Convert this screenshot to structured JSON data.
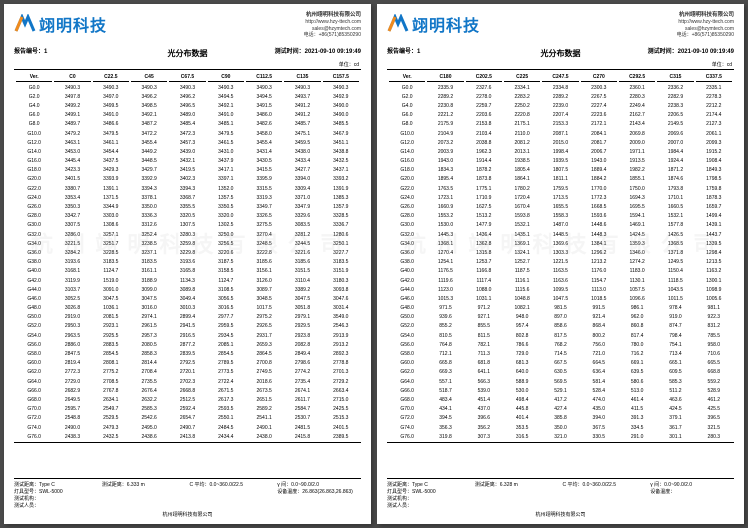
{
  "logo_text": "翊明科技",
  "company": {
    "name": "杭州翊明科技有限公司",
    "url": "http://www.hzy-ttech.com",
    "email": "sales@hzymtech.com",
    "tel": "电话：+86(571)85350290"
  },
  "watermark": "杭 州 翊 明 科 技 有 限 公 司",
  "pages": [
    {
      "report_no_label": "报告编号：",
      "report_no": "1",
      "test_time_label": "测试时间：",
      "test_time": "2021-09-10 09:19:49",
      "title": "光分布数据",
      "unit": "单位：cd",
      "columns": [
        "Ver.",
        "C0",
        "C22.5",
        "C45",
        "C67.5",
        "C90",
        "C112.5",
        "C135",
        "C157.5"
      ],
      "rows": [
        [
          "G0.0",
          "3490.3",
          "3490.3",
          "3490.3",
          "3490.3",
          "3490.3",
          "3490.3",
          "3490.3",
          "3490.3"
        ],
        [
          "G2.0",
          "3497.8",
          "3497.0",
          "3496.2",
          "3496.2",
          "3494.5",
          "3494.5",
          "3493.7",
          "3492.9"
        ],
        [
          "G4.0",
          "3499.2",
          "3499.5",
          "3498.5",
          "3496.5",
          "3492.1",
          "3491.5",
          "3491.2",
          "3490.0"
        ],
        [
          "G6.0",
          "3499.1",
          "3491.0",
          "3492.1",
          "3489.0",
          "3491.0",
          "3486.0",
          "3491.2",
          "3490.0"
        ],
        [
          "G8.0",
          "3489.7",
          "3486.6",
          "3487.2",
          "3485.4",
          "3485.1",
          "3482.6",
          "3485.7",
          "3485.5"
        ],
        [
          "G10.0",
          "3479.2",
          "3479.5",
          "3472.2",
          "3472.3",
          "3479.5",
          "3458.0",
          "3475.1",
          "3467.9"
        ],
        [
          "G12.0",
          "3463.1",
          "3461.1",
          "3455.4",
          "3457.3",
          "3461.5",
          "3455.4",
          "3459.5",
          "3451.1"
        ],
        [
          "G14.0",
          "3453.0",
          "3454.4",
          "3449.2",
          "3439.0",
          "3431.0",
          "3431.4",
          "3438.0",
          "3438.8"
        ],
        [
          "G16.0",
          "3445.4",
          "3437.5",
          "3448.5",
          "3432.1",
          "3437.9",
          "3430.5",
          "3433.4",
          "3432.5"
        ],
        [
          "G18.0",
          "3423.3",
          "3429.3",
          "3429.7",
          "3419.5",
          "3417.1",
          "3415.5",
          "3427.7",
          "3437.1"
        ],
        [
          "G20.0",
          "3401.5",
          "3393.9",
          "3392.9",
          "3402.3",
          "3397.1",
          "3395.9",
          "3394.0",
          "3393.2"
        ],
        [
          "G22.0",
          "3380.7",
          "1391.1",
          "3394.3",
          "3394.3",
          "1352.0",
          "3315.5",
          "3309.4",
          "1391.9"
        ],
        [
          "G24.0",
          "3353.4",
          "1371.5",
          "3378.1",
          "3368.7",
          "1357.5",
          "3319.3",
          "3371.0",
          "1385.3"
        ],
        [
          "G26.0",
          "3350.3",
          "3344.9",
          "3350.0",
          "3355.5",
          "3350.5",
          "3349.7",
          "3347.9",
          "1357.9"
        ],
        [
          "G28.0",
          "3342.7",
          "3303.0",
          "3336.3",
          "3320.5",
          "3320.0",
          "3326.5",
          "3329.6",
          "3328.5"
        ],
        [
          "G30.0",
          "3307.5",
          "1308.6",
          "3312.6",
          "1307.5",
          "1302.5",
          "3275.5",
          "3083.5",
          "3336.7"
        ],
        [
          "G32.0",
          "3286.0",
          "3257.1",
          "3252.4",
          "3280.3",
          "3250.0",
          "3270.4",
          "3281.2",
          "1280.6"
        ],
        [
          "G34.0",
          "3221.5",
          "3251.7",
          "3238.5",
          "3259.8",
          "3256.5",
          "3248.5",
          "3244.5",
          "3250.1"
        ],
        [
          "G36.0",
          "3284.2",
          "3228.5",
          "3237.1",
          "3229.8",
          "3220.6",
          "3222.8",
          "3221.6",
          "3227.7"
        ],
        [
          "G38.0",
          "3193.6",
          "3183.5",
          "3183.5",
          "3193.6",
          "3187.5",
          "3185.6",
          "3185.6",
          "3183.5"
        ],
        [
          "G40.0",
          "3168.1",
          "1124.7",
          "3161.1",
          "3165.8",
          "3158.5",
          "3156.1",
          "3151.5",
          "3151.9"
        ],
        [
          "G42.0",
          "3119.9",
          "1519.0",
          "3188.9",
          "1134.3",
          "1124.7",
          "3126.0",
          "3110.4",
          "3180.3"
        ],
        [
          "G44.0",
          "3103.7",
          "3091.0",
          "3099.0",
          "3089.8",
          "3108.5",
          "3089.7",
          "3389.2",
          "3093.8"
        ],
        [
          "G46.0",
          "3052.5",
          "3047.5",
          "3047.5",
          "3049.4",
          "3056.5",
          "3048.5",
          "3047.5",
          "3047.6"
        ],
        [
          "G48.0",
          "3026.8",
          "1036.1",
          "3016.0",
          "3010.3",
          "3016.5",
          "1017.5",
          "3051.8",
          "3031.4"
        ],
        [
          "G50.0",
          "2919.0",
          "2081.5",
          "2974.1",
          "2899.4",
          "2977.7",
          "2975.2",
          "2979.1",
          "3549.0"
        ],
        [
          "G52.0",
          "2950.3",
          "2923.1",
          "2961.5",
          "2941.5",
          "2959.5",
          "2926.5",
          "2929.5",
          "2546.3"
        ],
        [
          "G54.0",
          "2963.5",
          "2925.5",
          "2957.3",
          "2916.5",
          "2934.5",
          "2931.7",
          "2923.8",
          "2913.9"
        ],
        [
          "G56.0",
          "2886.0",
          "2883.5",
          "2080.5",
          "2877.2",
          "2085.1",
          "2659.3",
          "2082.8",
          "2913.2"
        ],
        [
          "G58.0",
          "2847.5",
          "2854.5",
          "2858.3",
          "2839.5",
          "2854.5",
          "2864.5",
          "2849.4",
          "2892.3"
        ],
        [
          "G60.0",
          "2819.4",
          "2808.1",
          "2814.4",
          "2792.5",
          "2789.5",
          "2700.8",
          "2798.6",
          "2778.8"
        ],
        [
          "G62.0",
          "2772.3",
          "2775.2",
          "2708.4",
          "2720.1",
          "2773.5",
          "2749.5",
          "2774.2",
          "2701.3"
        ],
        [
          "G64.0",
          "2729.0",
          "2708.5",
          "2735.5",
          "2702.3",
          "2722.4",
          "2018.6",
          "2735.4",
          "2729.2"
        ],
        [
          "G66.0",
          "2682.9",
          "2767.8",
          "2676.4",
          "2668.8",
          "2671.5",
          "2673.5",
          "2674.1",
          "2663.4"
        ],
        [
          "G68.0",
          "2649.5",
          "2634.1",
          "2632.2",
          "2512.5",
          "2617.3",
          "2651.5",
          "2611.7",
          "2715.0"
        ],
        [
          "G70.0",
          "2595.7",
          "2549.7",
          "2585.3",
          "2592.4",
          "2593.5",
          "2589.2",
          "2584.7",
          "2425.5"
        ],
        [
          "G72.0",
          "2548.8",
          "2529.5",
          "2542.6",
          "2654.7",
          "2550.1",
          "2541.1",
          "2530.7",
          "2515.3"
        ],
        [
          "G74.0",
          "2490.0",
          "2479.3",
          "2495.0",
          "2490.7",
          "2484.5",
          "2490.1",
          "2481.5",
          "2401.5"
        ],
        [
          "G76.0",
          "2438.3",
          "2432.5",
          "2438.6",
          "2413.8",
          "2434.4",
          "2438.0",
          "2415.8",
          "2389.5"
        ]
      ],
      "footer": {
        "r1": [
          "测试距离：",
          "Type C",
          "测试距离：",
          "6.333 m",
          "C 平均：",
          "0.0~360.0/22.5",
          "γ 间：",
          "0.0~90.0/2.0"
        ],
        "r2": [
          "灯具型号：",
          "SWL-5000",
          "",
          "",
          "",
          "",
          "设备温度：",
          "26.863(26.863,26.863)"
        ],
        "r3": [
          "测试机构：",
          "",
          "",
          " "
        ],
        "r4": [
          "测试人员："
        ],
        "center": "杭州翊明科技有限公司"
      }
    },
    {
      "report_no_label": "报告编号：",
      "report_no": "1",
      "test_time_label": "测试时间：",
      "test_time": "2021-09-10 09:19:49",
      "title": "光分布数据",
      "unit": "单位：cd",
      "columns": [
        "Ver.",
        "C180",
        "C202.5",
        "C225",
        "C247.5",
        "C270",
        "C292.5",
        "C315",
        "C337.5"
      ],
      "rows": [
        [
          "G0.0",
          "2335.9",
          "2327.6",
          "2334.1",
          "2334.8",
          "2300.3",
          "2360.1",
          "2336.2",
          "2335.1"
        ],
        [
          "G2.0",
          "2289.2",
          "2278.0",
          "2283.2",
          "2289.2",
          "2267.5",
          "2280.3",
          "2282.9",
          "2278.3"
        ],
        [
          "G4.0",
          "2230.8",
          "2259.7",
          "2250.2",
          "2239.0",
          "2227.4",
          "2249.4",
          "2238.3",
          "2212.2"
        ],
        [
          "G6.0",
          "2221.2",
          "2203.6",
          "2220.8",
          "2207.4",
          "2223.6",
          "2162.7",
          "2206.5",
          "2174.4"
        ],
        [
          "G8.0",
          "2175.9",
          "2153.8",
          "2175.1",
          "2153.3",
          "2172.1",
          "2143.4",
          "2149.5",
          "2127.3"
        ],
        [
          "G10.0",
          "2104.9",
          "2103.4",
          "2110.0",
          "2087.1",
          "2084.1",
          "2069.8",
          "2069.6",
          "2061.1"
        ],
        [
          "G12.0",
          "2073.2",
          "2038.8",
          "2081.2",
          "2015.0",
          "2081.7",
          "2009.0",
          "2007.0",
          "2099.3"
        ],
        [
          "G14.0",
          "2003.9",
          "1962.3",
          "2013.1",
          "1998.4",
          "2006.7",
          "1971.1",
          "1984.4",
          "1915.2"
        ],
        [
          "G16.0",
          "1943.0",
          "1914.4",
          "1938.5",
          "1939.5",
          "1943.0",
          "1913.5",
          "1924.4",
          "1908.4"
        ],
        [
          "G18.0",
          "1834.3",
          "1878.2",
          "1805.4",
          "1807.5",
          "1889.4",
          "1982.2",
          "1871.2",
          "1849.3"
        ],
        [
          "G20.0",
          "1895.4",
          "1873.8",
          "1864.1",
          "1811.1",
          "1884.2",
          "1855.1",
          "1874.6",
          "1798.5"
        ],
        [
          "G22.0",
          "1763.5",
          "1775.1",
          "1780.2",
          "1759.5",
          "1770.0",
          "1750.0",
          "1793.8",
          "1759.8"
        ],
        [
          "G24.0",
          "1723.1",
          "1710.9",
          "1720.4",
          "1713.5",
          "1772.3",
          "1694.3",
          "1710.1",
          "1878.3"
        ],
        [
          "G26.0",
          "1660.9",
          "1627.5",
          "1670.4",
          "1655.5",
          "1668.5",
          "1695.5",
          "1660.5",
          "1659.7"
        ],
        [
          "G28.0",
          "1553.2",
          "1513.2",
          "1593.8",
          "1558.3",
          "1593.6",
          "1594.1",
          "1532.1",
          "1499.4"
        ],
        [
          "G30.0",
          "1530.0",
          "1477.9",
          "1532.1",
          "1487.0",
          "1448.6",
          "1469.1",
          "1577.8",
          "1439.1"
        ],
        [
          "G32.0",
          "1445.3",
          "1436.4",
          "1435.1",
          "1448.5",
          "1448.3",
          "1424.5",
          "1426.5",
          "1443.7"
        ],
        [
          "G34.0",
          "1368.1",
          "1362.8",
          "1369.1",
          "1369.6",
          "1384.1",
          "1359.3",
          "1368.5",
          "1339.5"
        ],
        [
          "G36.0",
          "1270.4",
          "1315.8",
          "1324.1",
          "1303.3",
          "1296.2",
          "1346.0",
          "1371.8",
          "1298.4"
        ],
        [
          "G38.0",
          "1254.1",
          "1253.7",
          "1252.7",
          "1221.5",
          "1213.2",
          "1274.2",
          "1249.5",
          "1213.5"
        ],
        [
          "G40.0",
          "1176.5",
          "1166.8",
          "1187.5",
          "1163.5",
          "1176.0",
          "1183.0",
          "1150.4",
          "1163.2"
        ],
        [
          "G42.0",
          "1119.6",
          "1117.4",
          "1116.1",
          "1163.6",
          "1154.7",
          "1130.1",
          "1118.5",
          "1300.1"
        ],
        [
          "G44.0",
          "1123.0",
          "1088.0",
          "1115.6",
          "1099.5",
          "1113.0",
          "1057.5",
          "1043.5",
          "1098.9"
        ],
        [
          "G46.0",
          "1015.3",
          "1031.1",
          "1048.8",
          "1047.5",
          "1018.5",
          "1096.6",
          "1011.5",
          "1005.6"
        ],
        [
          "G48.0",
          "971.5",
          "971.2",
          "1082.1",
          "981.5",
          "991.5",
          "986.1",
          "978.4",
          "981.1"
        ],
        [
          "G50.0",
          "939.6",
          "927.1",
          "948.0",
          "897.0",
          "921.4",
          "962.0",
          "919.0",
          "922.3"
        ],
        [
          "G52.0",
          "855.2",
          "855.5",
          "957.4",
          "858.6",
          "868.4",
          "860.8",
          "874.7",
          "831.2"
        ],
        [
          "G54.0",
          "810.5",
          "811.5",
          "802.8",
          "817.5",
          "800.2",
          "817.4",
          "798.4",
          "785.5"
        ],
        [
          "G56.0",
          "764.8",
          "782.1",
          "786.6",
          "768.2",
          "756.0",
          "780.0",
          "754.1",
          "958.0"
        ],
        [
          "G58.0",
          "712.1",
          "711.3",
          "729.0",
          "714.5",
          "721.0",
          "716.2",
          "713.4",
          "710.6"
        ],
        [
          "G60.0",
          "665.8",
          "681.8",
          "681.3",
          "667.5",
          "664.5",
          "669.1",
          "665.1",
          "665.5"
        ],
        [
          "G62.0",
          "669.3",
          "641.1",
          "640.0",
          "630.5",
          "636.4",
          "639.5",
          "609.5",
          "668.8"
        ],
        [
          "G64.0",
          "557.1",
          "566.3",
          "588.9",
          "569.5",
          "581.4",
          "580.6",
          "585.3",
          "559.2"
        ],
        [
          "G66.0",
          "518.7",
          "539.0",
          "530.0",
          "529.1",
          "528.4",
          "513.0",
          "511.2",
          "528.9"
        ],
        [
          "G68.0",
          "483.4",
          "451.4",
          "498.4",
          "417.2",
          "474.0",
          "461.4",
          "463.6",
          "461.2"
        ],
        [
          "G70.0",
          "434.1",
          "437.0",
          "445.8",
          "427.4",
          "435.0",
          "411.5",
          "424.5",
          "425.5"
        ],
        [
          "G72.0",
          "394.5",
          "396.6",
          "401.4",
          "385.8",
          "394.0",
          "391.3",
          "379.1",
          "396.5"
        ],
        [
          "G74.0",
          "356.3",
          "356.2",
          "353.5",
          "350.0",
          "367.5",
          "334.5",
          "361.7",
          "321.5"
        ],
        [
          "G76.0",
          "319.8",
          "307.3",
          "316.5",
          "321.0",
          "330.5",
          "291.0",
          "301.1",
          "280.3"
        ]
      ],
      "footer": {
        "r1": [
          "测试距离：",
          "Type C",
          "测试距离：",
          "6.328 m",
          "C 平均：",
          "0.0~360.0/22.5",
          "γ 间：",
          "0.0~90.0/2.0"
        ],
        "r2": [
          "灯具型号：",
          "SWL-5000",
          "",
          "",
          "",
          "",
          "设备温度：",
          " "
        ],
        "r3": [
          "测试机构：",
          "",
          "",
          " "
        ],
        "r4": [
          "测试人员："
        ],
        "center": "杭州翊明科技有限公司"
      }
    }
  ]
}
